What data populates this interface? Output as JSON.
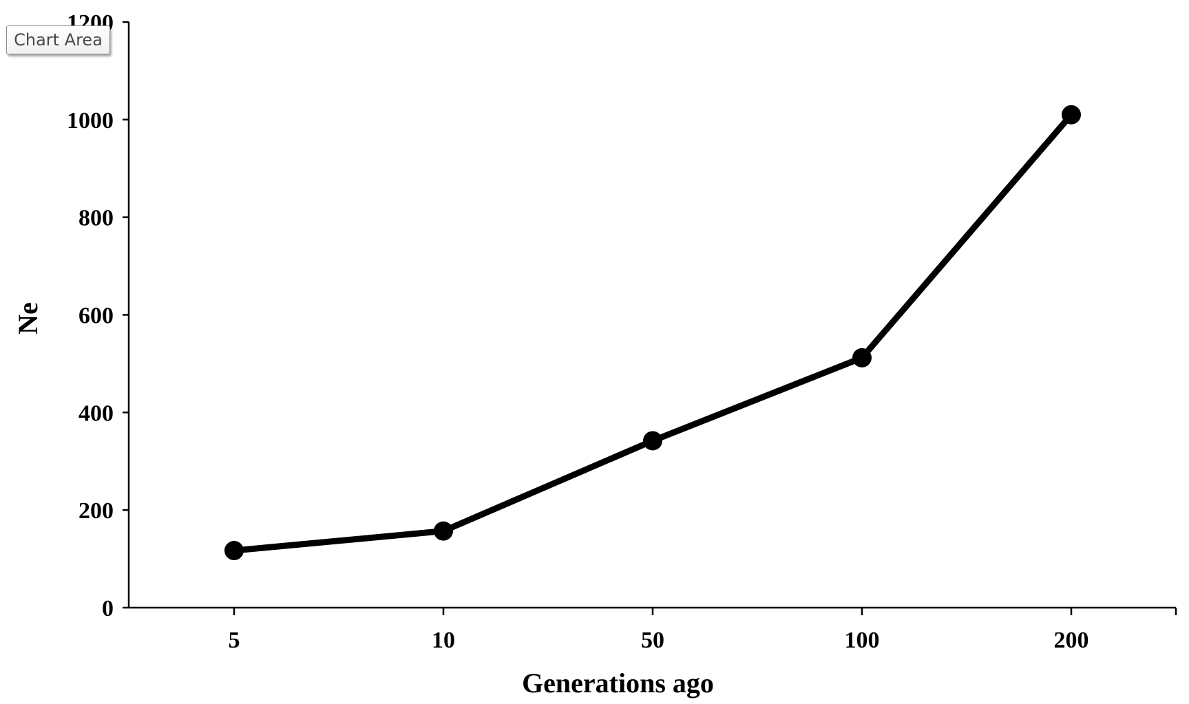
{
  "tooltip": {
    "label": "Chart Area"
  },
  "chart_data": {
    "type": "line",
    "categories": [
      "5",
      "10",
      "50",
      "100",
      "200"
    ],
    "series": [
      {
        "values": [
          117,
          157,
          342,
          512,
          1010
        ]
      }
    ],
    "xlabel": "Generations ago",
    "ylabel": "Ne",
    "ylim": [
      0,
      1200
    ],
    "yticks": [
      0,
      200,
      400,
      600,
      800,
      1000,
      1200
    ],
    "grid": false,
    "legend": "none",
    "colors": {
      "line": "#000000",
      "marker": "#000000",
      "axis": "#000000"
    }
  }
}
